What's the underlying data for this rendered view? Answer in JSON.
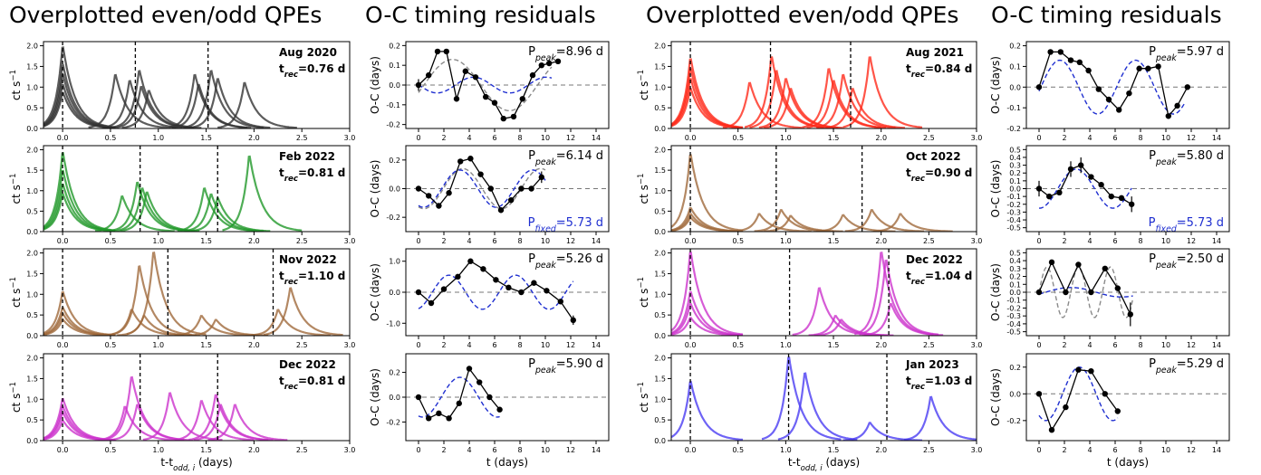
{
  "column_titles": [
    "Overplotted even/odd QPEs",
    "O-C timing residuals",
    "Overplotted even/odd QPEs",
    "O-C timing residuals"
  ],
  "lc_xlabel": "t-t",
  "lc_xlabel_sub": "odd, i",
  "lc_xlabel_unit": " (days)",
  "lc_ylabel": "ct s",
  "lc_ylabel_sup": "−1",
  "oc_xlabel": "t (days)",
  "oc_ylabel": "O-C (days)",
  "p_peak_prefix": "P",
  "p_peak_sub": "peak",
  "p_fixed_prefix": "P",
  "p_fixed_sub": "fixed",
  "t_rec_prefix": "t",
  "t_rec_sub": "rec",
  "chart_data": [
    {
      "type": "line",
      "panel": "lightcurve",
      "epoch": "Aug 2020",
      "t_rec": "=0.76 d",
      "color": "#333333",
      "xlim": [
        -0.2,
        3.0
      ],
      "ylim": [
        0,
        2.1
      ],
      "xticks": [
        "0.0",
        "0.5",
        "1.0",
        "1.5",
        "2.0",
        "2.5",
        "3.0"
      ],
      "yticks": [
        "0.0",
        "0.5",
        "1.0",
        "1.5",
        "2.0"
      ],
      "vlines": [
        0,
        0.76,
        1.52
      ],
      "flares": [
        {
          "t": 0,
          "h": 2.05
        },
        {
          "t": 0,
          "h": 1.6
        },
        {
          "t": 0,
          "h": 1.35
        },
        {
          "t": 0,
          "h": 1.1
        },
        {
          "t": 0,
          "h": 0.9
        },
        {
          "t": 0.55,
          "h": 1.35
        },
        {
          "t": 0.7,
          "h": 1.2
        },
        {
          "t": 0.8,
          "h": 1.45
        },
        {
          "t": 0.82,
          "h": 1.05
        },
        {
          "t": 0.9,
          "h": 0.95
        },
        {
          "t": 1.38,
          "h": 1.35
        },
        {
          "t": 1.42,
          "h": 1.1
        },
        {
          "t": 1.55,
          "h": 1.45
        },
        {
          "t": 1.62,
          "h": 1.25
        },
        {
          "t": 1.9,
          "h": 1.15
        }
      ]
    },
    {
      "type": "line",
      "panel": "oc",
      "p_peak": "=8.96 d",
      "xlim": [
        -1,
        15
      ],
      "ylim": [
        -0.22,
        0.22
      ],
      "xticks": [
        0,
        2,
        4,
        6,
        8,
        10,
        12,
        14
      ],
      "yticks": [
        "-0.2",
        "-0.1",
        "0.0",
        "0.1",
        "0.2"
      ],
      "x": [
        0,
        0.8,
        1.5,
        2.2,
        3.0,
        3.7,
        4.5,
        5.3,
        6.0,
        6.7,
        7.5,
        8.2,
        9.0,
        9.7,
        10.3,
        11.0
      ],
      "y": [
        0.0,
        0.05,
        0.17,
        0.17,
        -0.07,
        0.07,
        0.04,
        -0.06,
        -0.09,
        -0.17,
        -0.16,
        -0.07,
        0.05,
        0.1,
        0.11,
        0.12
      ],
      "err": [
        0.03,
        0,
        0,
        0,
        0,
        0,
        0,
        0,
        0,
        0,
        0,
        0,
        0,
        0,
        0,
        0
      ],
      "gray": {
        "a": 0.13,
        "P": 8.96,
        "phi": -0.3,
        "range": [
          0,
          10.5
        ]
      },
      "blue": {
        "a": 0.04,
        "P": 5.73,
        "phi": 3.1,
        "range": [
          0,
          10.5
        ]
      }
    },
    {
      "type": "line",
      "panel": "lightcurve",
      "epoch": "Aug 2021",
      "t_rec": "=0.84 d",
      "color": "#ff2a1a",
      "xlim": [
        -0.2,
        3.0
      ],
      "ylim": [
        0,
        2.1
      ],
      "xticks": [
        "0.0",
        "0.5",
        "1.0",
        "1.5",
        "2.0",
        "2.5",
        "3.0"
      ],
      "yticks": [
        "0.0",
        "0.5",
        "1.0",
        "1.5",
        "2.0"
      ],
      "vlines": [
        0,
        0.84,
        1.68
      ],
      "flares": [
        {
          "t": 0,
          "h": 1.75
        },
        {
          "t": 0,
          "h": 1.5
        },
        {
          "t": 0,
          "h": 1.25
        },
        {
          "t": 0,
          "h": 1.0
        },
        {
          "t": 0.62,
          "h": 1.15
        },
        {
          "t": 0.85,
          "h": 1.8
        },
        {
          "t": 0.9,
          "h": 1.45
        },
        {
          "t": 1.0,
          "h": 1.25
        },
        {
          "t": 1.05,
          "h": 1.0
        },
        {
          "t": 1.45,
          "h": 1.5
        },
        {
          "t": 1.5,
          "h": 1.2
        },
        {
          "t": 1.6,
          "h": 1.35
        },
        {
          "t": 1.7,
          "h": 1.0
        },
        {
          "t": 1.88,
          "h": 1.8
        }
      ]
    },
    {
      "type": "line",
      "panel": "oc",
      "p_peak": "=5.97 d",
      "xlim": [
        -1,
        15
      ],
      "ylim": [
        -0.2,
        0.22
      ],
      "xticks": [
        0,
        2,
        4,
        6,
        8,
        10,
        12,
        14
      ],
      "yticks": [
        "-0.2",
        "-0.1",
        "0.0",
        "0.1",
        "0.2"
      ],
      "x": [
        0,
        0.9,
        1.7,
        2.5,
        3.2,
        3.9,
        4.7,
        5.5,
        6.3,
        7.1,
        7.9,
        8.6,
        9.4,
        10.2,
        10.9,
        11.7
      ],
      "y": [
        0.0,
        0.17,
        0.17,
        0.13,
        0.12,
        0.08,
        -0.01,
        -0.06,
        -0.11,
        -0.03,
        0.09,
        0.09,
        0.1,
        -0.14,
        -0.09,
        0.0
      ],
      "err": [
        0,
        0,
        0,
        0,
        0,
        0,
        0,
        0,
        0,
        0,
        0,
        0,
        0,
        0,
        0,
        0
      ],
      "blue": {
        "a": 0.13,
        "P": 5.97,
        "phi": -0.15,
        "range": [
          0,
          11.5
        ]
      }
    },
    {
      "type": "line",
      "panel": "lightcurve",
      "epoch": "Feb 2022",
      "t_rec": "=0.81 d",
      "color": "#22992a",
      "xlim": [
        -0.2,
        3.0
      ],
      "ylim": [
        0,
        2.1
      ],
      "xticks": [
        "0.0",
        "0.5",
        "1.0",
        "1.5",
        "2.0",
        "2.5",
        "3.0"
      ],
      "yticks": [
        "0.0",
        "0.5",
        "1.0",
        "1.5",
        "2.0"
      ],
      "vlines": [
        0,
        0.81,
        1.62
      ],
      "flares": [
        {
          "t": 0,
          "h": 2.0
        },
        {
          "t": 0,
          "h": 1.55
        },
        {
          "t": 0,
          "h": 1.2
        },
        {
          "t": 0,
          "h": 0.95
        },
        {
          "t": 0.62,
          "h": 0.9
        },
        {
          "t": 0.78,
          "h": 1.25
        },
        {
          "t": 0.83,
          "h": 1.1
        },
        {
          "t": 0.88,
          "h": 1.0
        },
        {
          "t": 1.48,
          "h": 1.1
        },
        {
          "t": 1.55,
          "h": 0.95
        },
        {
          "t": 1.62,
          "h": 0.85
        },
        {
          "t": 1.95,
          "h": 1.92
        }
      ]
    },
    {
      "type": "line",
      "panel": "oc",
      "p_peak": "=6.14 d",
      "p_fixed": "=5.73 d",
      "xlim": [
        -1,
        15
      ],
      "ylim": [
        -0.3,
        0.3
      ],
      "xticks": [
        0,
        2,
        4,
        6,
        8,
        10,
        12,
        14
      ],
      "yticks": [
        "-0.2",
        "0.0",
        "0.2"
      ],
      "x": [
        0,
        0.8,
        1.6,
        2.4,
        3.3,
        4.1,
        4.9,
        5.7,
        6.5,
        7.3,
        8.1,
        8.9,
        9.7
      ],
      "y": [
        0.0,
        -0.05,
        -0.12,
        -0.03,
        0.19,
        0.21,
        0.1,
        0.0,
        -0.15,
        -0.08,
        0.0,
        0.0,
        0.08
      ],
      "err": [
        0,
        0,
        0,
        0,
        0,
        0,
        0,
        0,
        0,
        0,
        0,
        0,
        0.04
      ],
      "gray": {
        "a": 0.14,
        "P": 6.14,
        "phi": -2.0,
        "range": [
          0,
          10
        ]
      },
      "blue": {
        "a": 0.13,
        "P": 5.73,
        "phi": -2.0,
        "range": [
          0,
          10
        ]
      }
    },
    {
      "type": "line",
      "panel": "lightcurve",
      "epoch": "Oct 2022",
      "t_rec": "=0.90 d",
      "color": "#a06a3c",
      "xlim": [
        -0.2,
        3.0
      ],
      "ylim": [
        0,
        2.1
      ],
      "xticks": [
        "0.0",
        "0.5",
        "1.0",
        "1.5",
        "2.0",
        "2.5",
        "3.0"
      ],
      "yticks": [
        "0.0",
        "0.5",
        "1.0",
        "1.5",
        "2.0"
      ],
      "vlines": [
        0,
        0.9,
        1.8
      ],
      "flares": [
        {
          "t": 0,
          "h": 1.95
        },
        {
          "t": 0,
          "h": 0.6
        },
        {
          "t": 0,
          "h": 0.45
        },
        {
          "t": 0,
          "h": 0.35
        },
        {
          "t": 0.72,
          "h": 0.45
        },
        {
          "t": 0.95,
          "h": 0.55
        },
        {
          "t": 1.05,
          "h": 0.4
        },
        {
          "t": 1.6,
          "h": 0.42
        },
        {
          "t": 1.9,
          "h": 0.55
        },
        {
          "t": 2.2,
          "h": 0.45
        }
      ]
    },
    {
      "type": "line",
      "panel": "oc",
      "p_peak": "=5.80 d",
      "p_fixed": "=5.73 d",
      "xlim": [
        -1,
        15
      ],
      "ylim": [
        -0.55,
        0.55
      ],
      "xticks": [
        0,
        2,
        4,
        6,
        8,
        10,
        12,
        14
      ],
      "yticks": [
        "-0.5",
        "-0.4",
        "-0.3",
        "-0.2",
        "-0.1",
        "0.0",
        "0.1",
        "0.2",
        "0.3",
        "0.4",
        "0.5"
      ],
      "x": [
        0,
        0.8,
        1.6,
        2.5,
        3.3,
        4.1,
        4.9,
        5.7,
        6.5,
        7.3
      ],
      "y": [
        0.0,
        -0.1,
        -0.05,
        0.25,
        0.3,
        0.15,
        0.05,
        -0.1,
        -0.12,
        -0.2
      ],
      "err": [
        0.1,
        0,
        0,
        0.1,
        0.1,
        0,
        0,
        0,
        0,
        0.1
      ],
      "blue": {
        "a": 0.25,
        "P": 5.8,
        "phi": -1.6,
        "range": [
          0,
          7.3
        ]
      }
    },
    {
      "type": "line",
      "panel": "lightcurve",
      "epoch": "Nov 2022",
      "t_rec": "=1.10 d",
      "color": "#a06a3c",
      "xlim": [
        -0.2,
        3.0
      ],
      "ylim": [
        0,
        2.1
      ],
      "xticks": [
        "0.0",
        "0.5",
        "1.0",
        "1.5",
        "2.0",
        "2.5",
        "3.0"
      ],
      "yticks": [
        "0.0",
        "0.5",
        "1.0",
        "1.5",
        "2.0"
      ],
      "vlines": [
        0,
        1.1,
        2.2
      ],
      "flares": [
        {
          "t": 0,
          "h": 1.1
        },
        {
          "t": 0,
          "h": 0.7
        },
        {
          "t": 0,
          "h": 0.55
        },
        {
          "t": 0,
          "h": 0.4
        },
        {
          "t": 0.72,
          "h": 0.65
        },
        {
          "t": 0.8,
          "h": 1.75
        },
        {
          "t": 0.95,
          "h": 2.1
        },
        {
          "t": 0.85,
          "h": 0.5
        },
        {
          "t": 1.45,
          "h": 0.5
        },
        {
          "t": 1.6,
          "h": 0.4
        },
        {
          "t": 2.25,
          "h": 0.65
        },
        {
          "t": 2.38,
          "h": 1.2
        }
      ]
    },
    {
      "type": "line",
      "panel": "oc",
      "p_peak": "=5.26 d",
      "xlim": [
        -1,
        15
      ],
      "ylim": [
        -1.4,
        1.4
      ],
      "xticks": [
        0,
        2,
        4,
        6,
        8,
        10,
        12,
        14
      ],
      "yticks": [
        "-1.0",
        "0.0",
        "1.0"
      ],
      "x": [
        0,
        1.0,
        2.0,
        3.1,
        4.1,
        5.1,
        6.1,
        7.1,
        8.1,
        9.1,
        10.1,
        11.2,
        12.2
      ],
      "y": [
        0.0,
        -0.35,
        0.1,
        0.5,
        1.0,
        0.75,
        0.4,
        0.15,
        0.0,
        0.3,
        0.05,
        -0.3,
        -0.9
      ],
      "err": [
        0,
        0,
        0,
        0,
        0,
        0,
        0,
        0,
        0,
        0,
        0,
        0,
        0.15
      ],
      "blue": {
        "a": 0.55,
        "P": 5.26,
        "phi": -1.3,
        "range": [
          0,
          12.2
        ]
      }
    },
    {
      "type": "line",
      "panel": "lightcurve",
      "epoch": "Dec 2022",
      "t_rec": "=1.04 d",
      "color": "#cc33cc",
      "xlim": [
        -0.2,
        3.0
      ],
      "ylim": [
        0,
        2.1
      ],
      "xticks": [
        "0.0",
        "0.5",
        "1.0",
        "1.5",
        "2.0",
        "2.5",
        "3.0"
      ],
      "yticks": [
        "0.0",
        "0.5",
        "1.0",
        "1.5",
        "2.0"
      ],
      "vlines": [
        0,
        1.04,
        2.08
      ],
      "flares": [
        {
          "t": 0,
          "h": 2.1
        },
        {
          "t": 0,
          "h": 1.1
        },
        {
          "t": 0,
          "h": 0.8
        },
        {
          "t": 0,
          "h": 0.45
        },
        {
          "t": 1.35,
          "h": 1.2
        },
        {
          "t": 1.52,
          "h": 0.5
        },
        {
          "t": 1.58,
          "h": 0.4
        },
        {
          "t": 2.0,
          "h": 2.1
        },
        {
          "t": 2.05,
          "h": 1.9
        },
        {
          "t": 2.1,
          "h": 0.8
        }
      ]
    },
    {
      "type": "line",
      "panel": "oc",
      "p_peak": "=2.50 d",
      "xlim": [
        -1,
        15
      ],
      "ylim": [
        -0.55,
        0.55
      ],
      "xticks": [
        0,
        2,
        4,
        6,
        8,
        10,
        12,
        14
      ],
      "yticks": [
        "-0.5",
        "-0.4",
        "-0.3",
        "-0.2",
        "-0.1",
        "0.0",
        "0.1",
        "0.2",
        "0.3",
        "0.4",
        "0.5"
      ],
      "x": [
        0,
        1.0,
        2.1,
        3.1,
        4.1,
        5.2,
        6.2,
        7.2
      ],
      "y": [
        0.0,
        0.38,
        0.0,
        0.35,
        0.0,
        0.3,
        0.05,
        -0.28
      ],
      "err": [
        0,
        0,
        0,
        0,
        0,
        0,
        0,
        0.15
      ],
      "gray": {
        "a": 0.32,
        "P": 2.5,
        "phi": 0.0,
        "range": [
          0,
          7.4
        ]
      },
      "blue": {
        "a": 0.06,
        "P": 8.0,
        "phi": -0.4,
        "range": [
          0,
          7.4
        ]
      }
    },
    {
      "type": "line",
      "panel": "lightcurve",
      "epoch": "Dec 2022",
      "t_rec": "=0.81 d",
      "color": "#cc33cc",
      "xlim": [
        -0.2,
        3.0
      ],
      "ylim": [
        0,
        2.1
      ],
      "xticks": [
        "0.0",
        "0.5",
        "1.0",
        "1.5",
        "2.0",
        "2.5",
        "3.0"
      ],
      "yticks": [
        "0.0",
        "0.5",
        "1.0",
        "1.5",
        "2.0"
      ],
      "vlines": [
        0,
        0.81,
        1.62
      ],
      "flares": [
        {
          "t": 0,
          "h": 1.05
        },
        {
          "t": 0,
          "h": 0.85
        },
        {
          "t": 0,
          "h": 0.7
        },
        {
          "t": 0,
          "h": 0.5
        },
        {
          "t": 0.65,
          "h": 0.85
        },
        {
          "t": 0.72,
          "h": 1.6
        },
        {
          "t": 0.78,
          "h": 0.9
        },
        {
          "t": 1.12,
          "h": 1.2
        },
        {
          "t": 1.45,
          "h": 1.0
        },
        {
          "t": 1.6,
          "h": 1.15
        },
        {
          "t": 1.65,
          "h": 0.9
        },
        {
          "t": 1.8,
          "h": 0.9
        }
      ]
    },
    {
      "type": "line",
      "panel": "oc",
      "p_peak": "=5.90 d",
      "xlim": [
        -1,
        15
      ],
      "ylim": [
        -0.35,
        0.35
      ],
      "xticks": [
        0,
        2,
        4,
        6,
        8,
        10,
        12,
        14
      ],
      "yticks": [
        "-0.2",
        "0.0",
        "0.2"
      ],
      "x": [
        0,
        0.8,
        1.6,
        2.4,
        3.2,
        4.0,
        4.8,
        5.6,
        6.4
      ],
      "y": [
        0.0,
        -0.17,
        -0.13,
        -0.17,
        -0.05,
        0.23,
        0.12,
        0.0,
        -0.1
      ],
      "err": [
        0,
        0,
        0,
        0,
        0,
        0,
        0,
        0,
        0
      ],
      "blue": {
        "a": 0.16,
        "P": 5.9,
        "phi": -1.9,
        "range": [
          0,
          6.4
        ]
      }
    },
    {
      "type": "line",
      "panel": "lightcurve",
      "epoch": "Jan 2023",
      "t_rec": "=1.03 d",
      "color": "#4a3cf2",
      "xlim": [
        -0.2,
        3.0
      ],
      "ylim": [
        0,
        2.1
      ],
      "xticks": [
        "0.0",
        "0.5",
        "1.0",
        "1.5",
        "2.0",
        "2.5",
        "3.0"
      ],
      "yticks": [
        "0.0",
        "0.5",
        "1.0",
        "1.5",
        "2.0"
      ],
      "vlines": [
        0,
        1.03,
        2.06
      ],
      "flares": [
        {
          "t": 0,
          "h": 1.48
        },
        {
          "t": 1.03,
          "h": 2.1
        },
        {
          "t": 1.2,
          "h": 1.7
        },
        {
          "t": 1.88,
          "h": 0.45
        },
        {
          "t": 2.52,
          "h": 1.1
        }
      ]
    },
    {
      "type": "line",
      "panel": "oc",
      "p_peak": "=5.29 d",
      "xlim": [
        -1,
        15
      ],
      "ylim": [
        -0.35,
        0.3
      ],
      "xticks": [
        0,
        2,
        4,
        6,
        8,
        10,
        12,
        14
      ],
      "yticks": [
        "-0.2",
        "0.0",
        "0.2"
      ],
      "x": [
        0,
        1.0,
        2.1,
        3.1,
        4.1,
        5.2,
        6.2
      ],
      "y": [
        0.0,
        -0.27,
        -0.1,
        0.18,
        0.17,
        0.0,
        -0.13
      ],
      "err": [
        0,
        0,
        0,
        0,
        0,
        0,
        0
      ],
      "blue": {
        "a": 0.2,
        "P": 5.29,
        "phi": -2.2,
        "range": [
          0,
          6.2
        ]
      }
    }
  ]
}
